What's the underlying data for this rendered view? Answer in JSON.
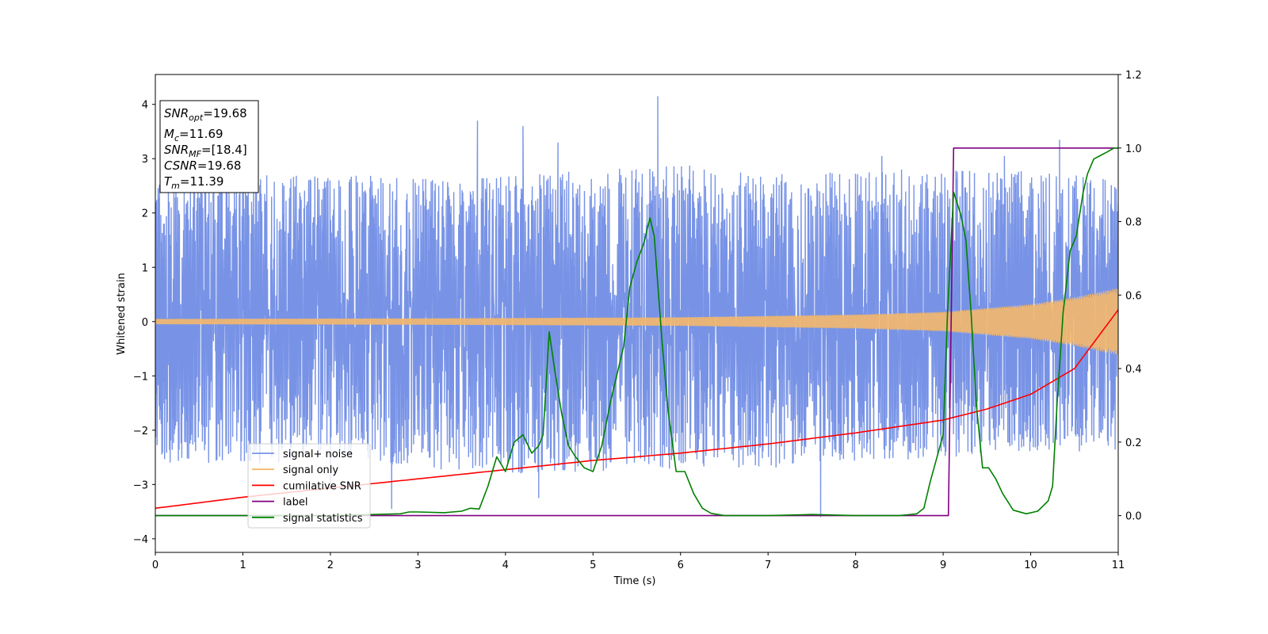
{
  "chart_data": {
    "type": "line",
    "title": "",
    "xlabel": "Time (s)",
    "ylabel": "Whitened strain",
    "xlim": [
      0,
      11
    ],
    "ylim": [
      -4.25,
      4.55
    ],
    "y2lim": [
      -0.1,
      1.2
    ],
    "x_ticks": [
      "0",
      "1",
      "2",
      "3",
      "4",
      "5",
      "6",
      "7",
      "8",
      "9",
      "10",
      "11"
    ],
    "y_ticks": [
      "−4",
      "−3",
      "−2",
      "−1",
      "0",
      "1",
      "2",
      "3",
      "4"
    ],
    "y2_ticks": [
      "0.0",
      "0.2",
      "0.4",
      "0.6",
      "0.8",
      "1.0",
      "1.2"
    ],
    "grid": false,
    "legend_location": "lower-left",
    "annotation": {
      "lines": [
        {
          "main": "SNR",
          "sub": "opt",
          "rest": "=19.68"
        },
        {
          "main": "M",
          "sub": "c",
          "rest": "=11.69"
        },
        {
          "main": "SNR",
          "sub": "MF",
          "rest": "=[18.4]"
        },
        {
          "main": "CSNR",
          "sub": "",
          "rest": "=19.68"
        },
        {
          "main": "T",
          "sub": "m",
          "rest": "=11.39"
        }
      ]
    },
    "series": [
      {
        "name": "signal+ noise",
        "axis": "left",
        "color": "#7893e6",
        "style": "noise band",
        "envelope_x": [
          0,
          0.5,
          1,
          2,
          3,
          4,
          5,
          6,
          7,
          8,
          9,
          10,
          11
        ],
        "envelope_low": [
          -2.6,
          -2.6,
          -2.7,
          -2.5,
          -2.7,
          -2.8,
          -2.8,
          -2.7,
          -2.7,
          -2.6,
          -2.5,
          -2.4,
          -2.5
        ],
        "envelope_high": [
          2.6,
          2.8,
          2.8,
          2.7,
          2.7,
          2.7,
          2.8,
          2.9,
          2.7,
          2.8,
          2.8,
          2.8,
          2.6
        ],
        "spikes": [
          {
            "x": 3.68,
            "y": 3.7
          },
          {
            "x": 4.2,
            "y": 3.6
          },
          {
            "x": 5.74,
            "y": 4.15
          },
          {
            "x": 10.33,
            "y": 3.35
          },
          {
            "x": 1.0,
            "y": 3.1
          },
          {
            "x": 4.6,
            "y": 3.3
          },
          {
            "x": 7.6,
            "y": -3.6
          },
          {
            "x": 2.7,
            "y": -3.45
          },
          {
            "x": 4.38,
            "y": -3.25
          },
          {
            "x": 9.7,
            "y": 3.05
          },
          {
            "x": 8.3,
            "y": 3.05
          },
          {
            "x": 2.0,
            "y": -3.1
          }
        ]
      },
      {
        "name": "signal only",
        "axis": "left",
        "color": "#f4b86a",
        "style": "chirp",
        "amplitude_points": [
          [
            0,
            0.05
          ],
          [
            3,
            0.06
          ],
          [
            6,
            0.08
          ],
          [
            8,
            0.13
          ],
          [
            9,
            0.18
          ],
          [
            10,
            0.32
          ],
          [
            10.5,
            0.45
          ],
          [
            11,
            0.62
          ]
        ]
      },
      {
        "name": "cumilative SNR",
        "axis": "right",
        "color": "#ff0000",
        "x": [
          0,
          1,
          2,
          3,
          4,
          5,
          6,
          7,
          8,
          9,
          9.5,
          10,
          10.5,
          11
        ],
        "y": [
          0.02,
          0.05,
          0.075,
          0.1,
          0.125,
          0.15,
          0.17,
          0.195,
          0.225,
          0.26,
          0.29,
          0.33,
          0.4,
          0.56
        ]
      },
      {
        "name": "label",
        "axis": "right",
        "color": "#800080",
        "x": [
          0,
          9.06,
          9.12,
          11
        ],
        "y": [
          0,
          0,
          1,
          1
        ]
      },
      {
        "name": "signal statistics",
        "axis": "right",
        "color": "#008000",
        "x": [
          0,
          1,
          2,
          2.8,
          2.9,
          3.0,
          3.3,
          3.5,
          3.6,
          3.7,
          3.8,
          3.9,
          4.0,
          4.1,
          4.2,
          4.3,
          4.38,
          4.43,
          4.5,
          4.56,
          4.64,
          4.72,
          4.8,
          4.9,
          5.0,
          5.1,
          5.2,
          5.28,
          5.35,
          5.42,
          5.5,
          5.58,
          5.65,
          5.7,
          5.74,
          5.79,
          5.86,
          5.95,
          6.05,
          6.15,
          6.25,
          6.35,
          6.5,
          7.0,
          7.5,
          8.0,
          8.5,
          8.7,
          8.78,
          8.85,
          9.0,
          9.05,
          9.12,
          9.2,
          9.26,
          9.32,
          9.38,
          9.45,
          9.52,
          9.6,
          9.68,
          9.8,
          9.95,
          10.08,
          10.2,
          10.25,
          10.3,
          10.37,
          10.45,
          10.52,
          10.6,
          10.65,
          10.72,
          10.8,
          10.88,
          10.95,
          11.0
        ],
        "y": [
          0,
          0,
          0,
          0.005,
          0.01,
          0.01,
          0.008,
          0.012,
          0.02,
          0.018,
          0.08,
          0.16,
          0.12,
          0.2,
          0.22,
          0.17,
          0.19,
          0.22,
          0.5,
          0.4,
          0.28,
          0.19,
          0.16,
          0.13,
          0.12,
          0.19,
          0.31,
          0.39,
          0.46,
          0.62,
          0.69,
          0.74,
          0.81,
          0.76,
          0.63,
          0.47,
          0.28,
          0.12,
          0.12,
          0.06,
          0.02,
          0.006,
          0,
          0,
          0.003,
          0,
          0,
          0.005,
          0.02,
          0.09,
          0.22,
          0.55,
          0.88,
          0.82,
          0.75,
          0.55,
          0.3,
          0.13,
          0.13,
          0.1,
          0.06,
          0.015,
          0.005,
          0.012,
          0.04,
          0.08,
          0.3,
          0.55,
          0.72,
          0.76,
          0.88,
          0.93,
          0.97,
          0.98,
          0.99,
          1.0,
          1.0
        ]
      }
    ]
  }
}
